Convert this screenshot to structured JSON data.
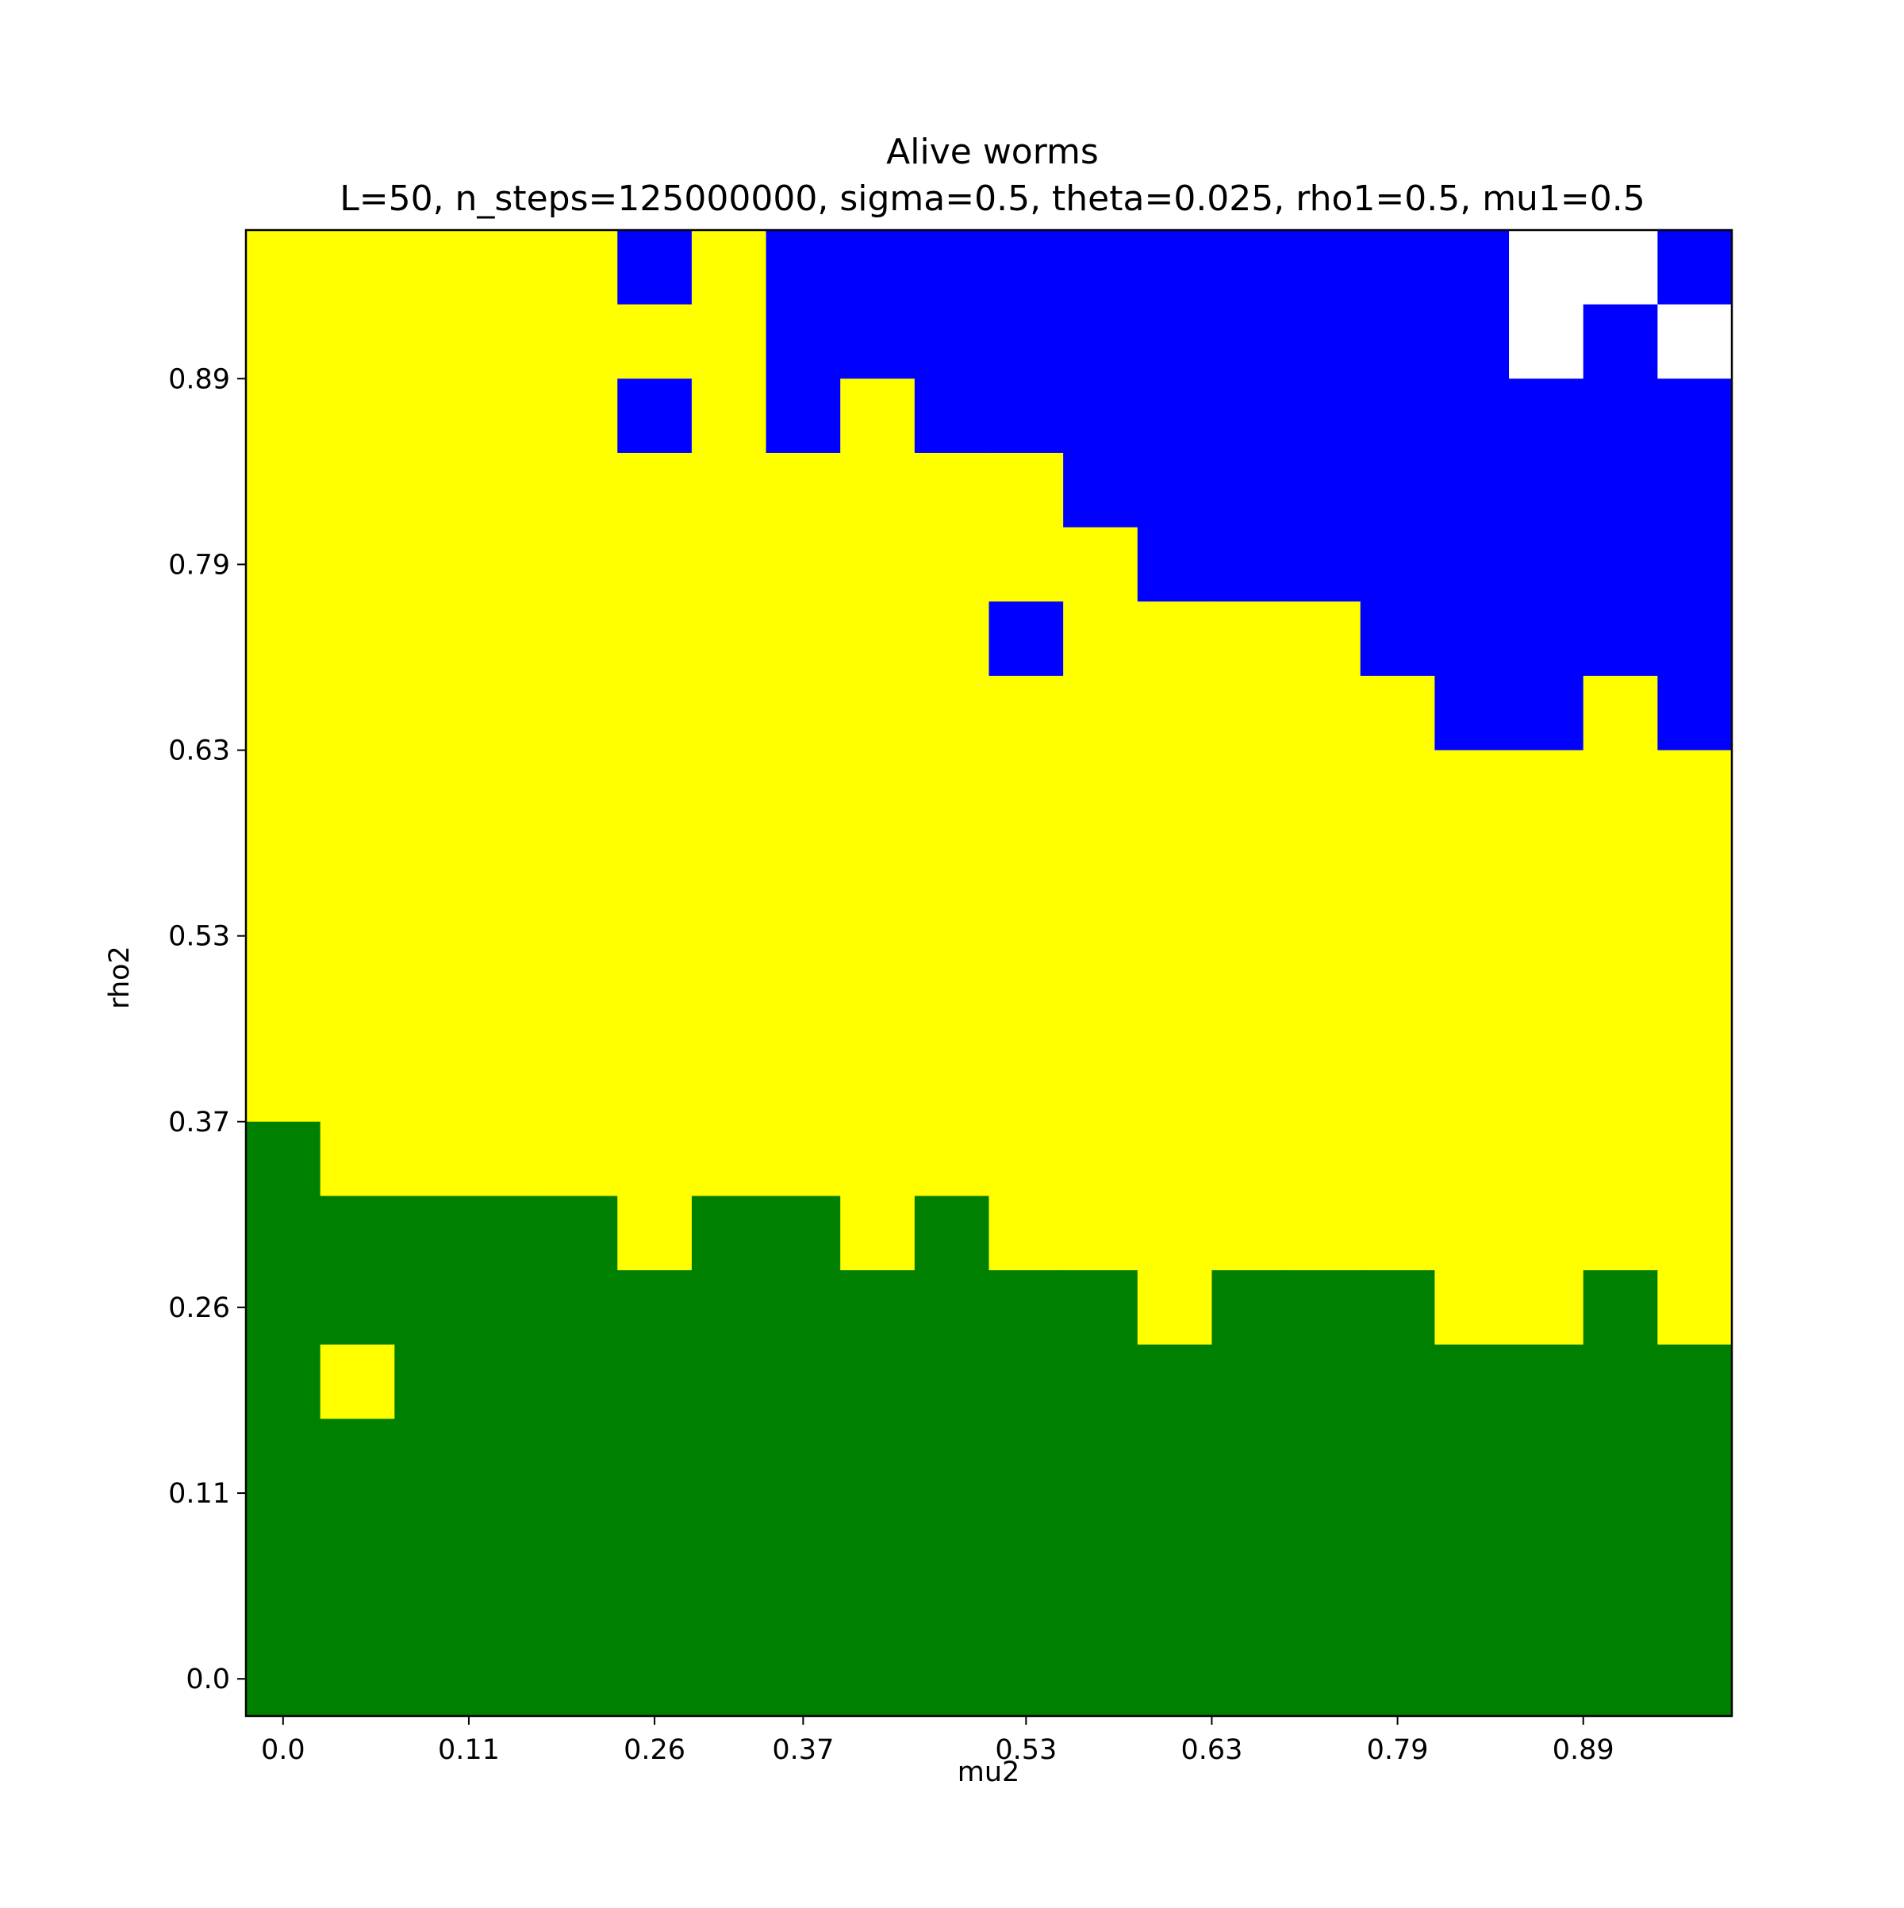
{
  "chart_data": {
    "type": "heatmap",
    "title": "Alive worms",
    "subtitle": "L=50, n_steps=125000000, sigma=0.5, theta=0.025, rho1=0.5, mu1=0.5",
    "xlabel": "mu2",
    "ylabel": "rho2",
    "x_ticks": [
      {
        "index": 0,
        "label": "0.0"
      },
      {
        "index": 2.5,
        "label": "0.11"
      },
      {
        "index": 5,
        "label": "0.26"
      },
      {
        "index": 7,
        "label": "0.37"
      },
      {
        "index": 10,
        "label": "0.53"
      },
      {
        "index": 12.5,
        "label": "0.63"
      },
      {
        "index": 15,
        "label": "0.79"
      },
      {
        "index": 17.5,
        "label": "0.89"
      }
    ],
    "y_ticks": [
      {
        "index": 0,
        "label": "0.0"
      },
      {
        "index": 2.5,
        "label": "0.11"
      },
      {
        "index": 5,
        "label": "0.26"
      },
      {
        "index": 7.5,
        "label": "0.37"
      },
      {
        "index": 10,
        "label": "0.53"
      },
      {
        "index": 12.5,
        "label": "0.63"
      },
      {
        "index": 15,
        "label": "0.79"
      },
      {
        "index": 17.5,
        "label": "0.89"
      }
    ],
    "n_cols": 20,
    "n_rows": 20,
    "palette": {
      "W": "#ffffff",
      "B": "#0000ff",
      "Y": "#ffff00",
      "G": "#008000"
    },
    "grid_rows_top_to_bottom": [
      "YYYYYBYBBBBBBBBBBWWB",
      "YYYYYYYBBBBBBBBBBWBW",
      "YYYYYBYBYBBBBBBBBBBB",
      "YYYYYYYYYYYBBBBBBBBB",
      "YYYYYYYYYYYYBBBBBBBB",
      "YYYYYYYYYYBYYYYBBBBB",
      "YYYYYYYYYYYYYYYYBBYB",
      "YYYYYYYYYYYYYYYYYYYY",
      "YYYYYYYYYYYYYYYYYYYY",
      "YYYYYYYYYYYYYYYYYYYY",
      "YYYYYYYYYYYYYYYYYYYY",
      "YYYYYYYYYYYYYYYYYYYY",
      "GYYYYYYYYYYYYYYYYYYY",
      "GGGGGYGGYGYYYYYYYYYY",
      "GGGGGGGGGGGGYGGGYYGY",
      "GYGGGGGGGGGGGGGGGGGG",
      "GGGGGGGGGGGGGGGGGGGG",
      "GGGGGGGGGGGGGGGGGGGG",
      "GGGGGGGGGGGGGGGGGGGG",
      "GGGGGGGGGGGGGGGGGGGG"
    ]
  }
}
